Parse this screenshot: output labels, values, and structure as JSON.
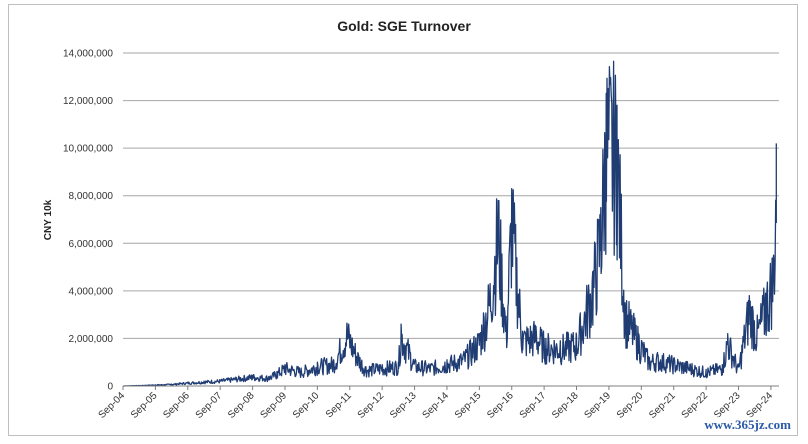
{
  "watermark": "www.365jz.com",
  "colors": {
    "series": "#1f3c73",
    "grid": "#a6a6a6",
    "axis": "#7f7f7f"
  },
  "chart_data": {
    "type": "area",
    "title": "Gold: SGE Turnover",
    "ylabel": "CNY 10k",
    "xlabel": "",
    "ylim": [
      0,
      14000000
    ],
    "yticks": [
      0,
      2000000,
      4000000,
      6000000,
      8000000,
      10000000,
      12000000,
      14000000
    ],
    "ytick_labels": [
      "0",
      "2,000,000",
      "4,000,000",
      "6,000,000",
      "8,000,000",
      "10,000,000",
      "12,000,000",
      "14,000,000"
    ],
    "xlim": [
      "2004-09",
      "2024-12"
    ],
    "xtick_labels": [
      "Sep-04",
      "Sep-05",
      "Sep-06",
      "Sep-07",
      "Sep-08",
      "Sep-09",
      "Sep-10",
      "Sep-11",
      "Sep-12",
      "Sep-13",
      "Sep-14",
      "Sep-15",
      "Sep-16",
      "Sep-17",
      "Sep-18",
      "Sep-19",
      "Sep-20",
      "Sep-21",
      "Sep-22",
      "Sep-23",
      "Sep-24"
    ],
    "grid": "horizontal",
    "series": [
      {
        "x": [
          "2004-09",
          "2005-03",
          "2005-09",
          "2006-03",
          "2006-09",
          "2007-03",
          "2007-09",
          "2008-03",
          "2008-09",
          "2009-03",
          "2009-06",
          "2009-09",
          "2010-03",
          "2010-09",
          "2011-03",
          "2011-08",
          "2011-12",
          "2012-03",
          "2012-09",
          "2013-03",
          "2013-04",
          "2013-09",
          "2014-03",
          "2014-09",
          "2015-03",
          "2015-09",
          "2016-01",
          "2016-04",
          "2016-07",
          "2016-09",
          "2017-01",
          "2017-06",
          "2017-09",
          "2018-03",
          "2018-09",
          "2019-03",
          "2019-06",
          "2019-08",
          "2019-12",
          "2020-03",
          "2020-08",
          "2020-12",
          "2021-03",
          "2021-09",
          "2022-03",
          "2022-09",
          "2023-03",
          "2023-05",
          "2023-09",
          "2024-01",
          "2024-04",
          "2024-07",
          "2024-10",
          "2024-11"
        ],
        "values": [
          0,
          20000,
          50000,
          80000,
          150000,
          200000,
          250000,
          350000,
          450000,
          400000,
          600000,
          900000,
          700000,
          1000000,
          1100000,
          2600000,
          1400000,
          800000,
          900000,
          1000000,
          2600000,
          1000000,
          900000,
          1100000,
          1300000,
          2200000,
          4300000,
          7800000,
          2500000,
          8300000,
          2300000,
          2500000,
          2000000,
          1900000,
          2100000,
          4800000,
          7500000,
          12300000,
          11800000,
          3500000,
          2200000,
          1200000,
          1300000,
          1100000,
          900000,
          700000,
          900000,
          2200000,
          800000,
          3800000,
          2600000,
          3900000,
          5500000,
          10200000
        ]
      }
    ]
  }
}
